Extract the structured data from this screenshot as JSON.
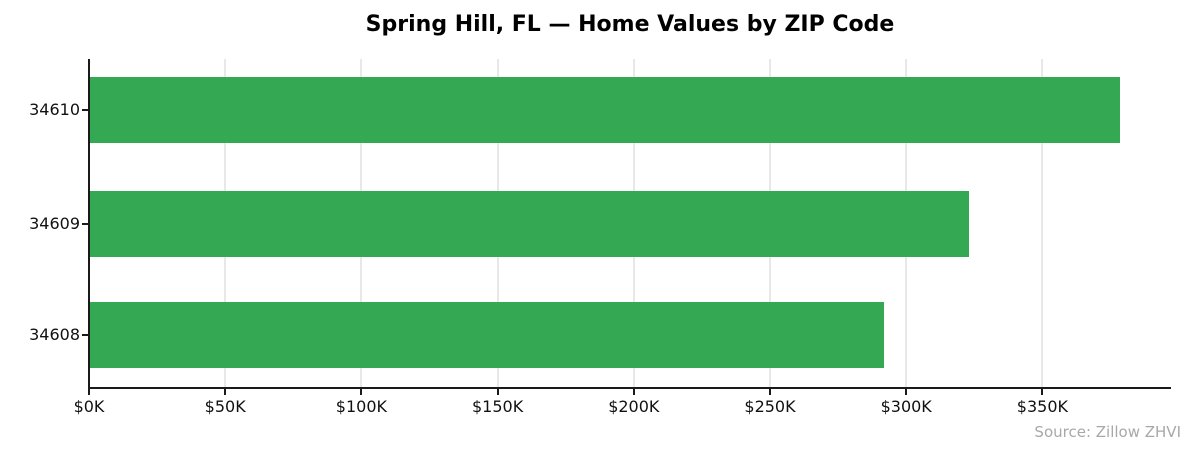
{
  "title": "Spring Hill, FL — Home Values by ZIP Code",
  "source_note": "Source: Zillow ZHVI",
  "chart_data": {
    "type": "bar",
    "orientation": "horizontal",
    "title": "Spring Hill, FL — Home Values by ZIP Code",
    "xlabel": "",
    "ylabel": "",
    "categories": [
      "34610",
      "34609",
      "34608"
    ],
    "values_usd": [
      378600,
      323200,
      292000
    ],
    "values_k": [
      378.6,
      323.2,
      292.0
    ],
    "x_tick_labels": [
      "$0K",
      "$50K",
      "$100K",
      "$150K",
      "$200K",
      "$250K",
      "$300K",
      "$350K"
    ],
    "x_tick_values_k": [
      0,
      50,
      100,
      150,
      200,
      250,
      300,
      350
    ],
    "xlim_k": [
      0,
      397
    ],
    "grid": "vertical-only",
    "legend": "none",
    "annotation": "Source: Zillow ZHVI",
    "colors": {
      "bar": "#35a853",
      "gridline": "#e8e8e8",
      "axis": "#1a1a1a",
      "tick_label": "#111111",
      "title": "#000000",
      "source_note": "#a8a8a8",
      "background": "#ffffff"
    }
  }
}
